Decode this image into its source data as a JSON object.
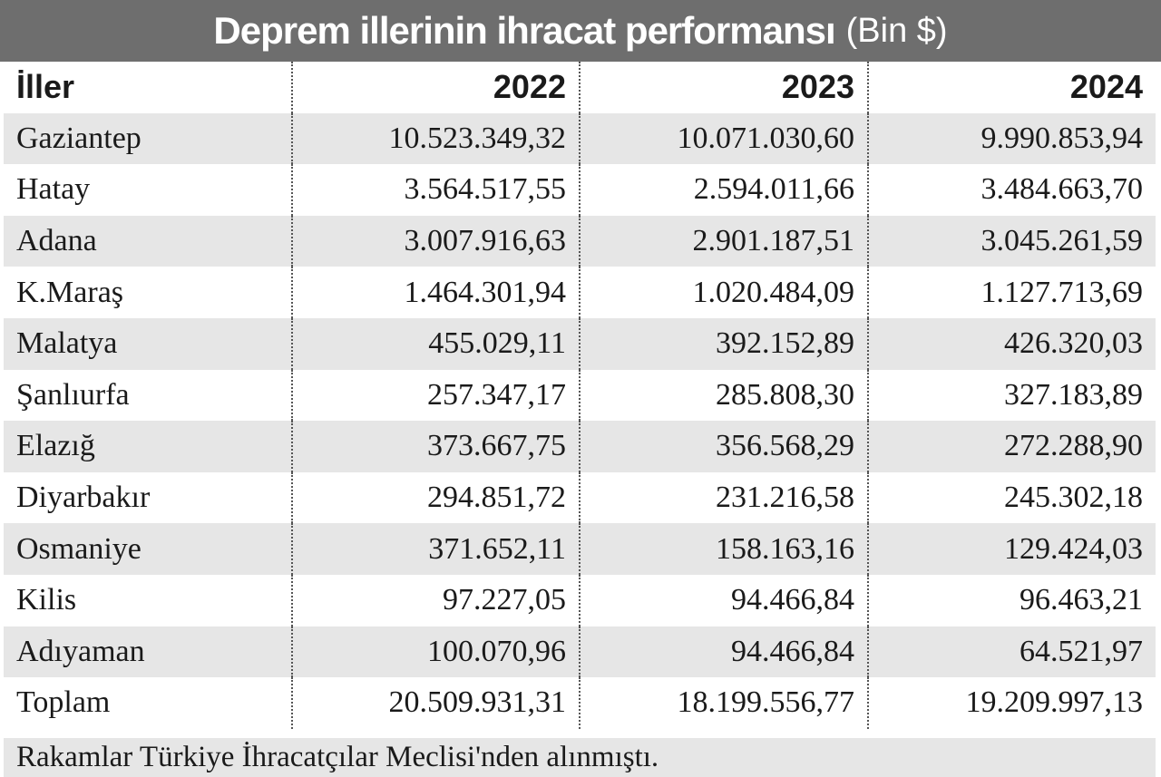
{
  "title": {
    "main": "Deprem illerinin ihracat performansı",
    "unit": "(Bin $)"
  },
  "table": {
    "headers": [
      "İller",
      "2022",
      "2023",
      "2024"
    ],
    "rows": [
      {
        "city": "Gaziantep",
        "y2022": "10.523.349,32",
        "y2023": "10.071.030,60",
        "y2024": "9.990.853,94"
      },
      {
        "city": "Hatay",
        "y2022": "3.564.517,55",
        "y2023": "2.594.011,66",
        "y2024": "3.484.663,70"
      },
      {
        "city": "Adana",
        "y2022": "3.007.916,63",
        "y2023": "2.901.187,51",
        "y2024": "3.045.261,59"
      },
      {
        "city": "K.Maraş",
        "y2022": "1.464.301,94",
        "y2023": "1.020.484,09",
        "y2024": "1.127.713,69"
      },
      {
        "city": "Malatya",
        "y2022": "455.029,11",
        "y2023": "392.152,89",
        "y2024": "426.320,03"
      },
      {
        "city": "Şanlıurfa",
        "y2022": "257.347,17",
        "y2023": "285.808,30",
        "y2024": "327.183,89"
      },
      {
        "city": "Elazığ",
        "y2022": "373.667,75",
        "y2023": "356.568,29",
        "y2024": "272.288,90"
      },
      {
        "city": "Diyarbakır",
        "y2022": "294.851,72",
        "y2023": "231.216,58",
        "y2024": "245.302,18"
      },
      {
        "city": "Osmaniye",
        "y2022": "371.652,11",
        "y2023": "158.163,16",
        "y2024": "129.424,03"
      },
      {
        "city": "Kilis",
        "y2022": "97.227,05",
        "y2023": "94.466,84",
        "y2024": "96.463,21"
      },
      {
        "city": "Adıyaman",
        "y2022": "100.070,96",
        "y2023": "94.466,84",
        "y2024": "64.521,97"
      },
      {
        "city": "Toplam",
        "y2022": "20.509.931,31",
        "y2023": "18.199.556,77",
        "y2024": "19.209.997,13"
      }
    ]
  },
  "source_note": "Rakamlar Türkiye İhracatçılar Meclisi'nden alınmıştı."
}
